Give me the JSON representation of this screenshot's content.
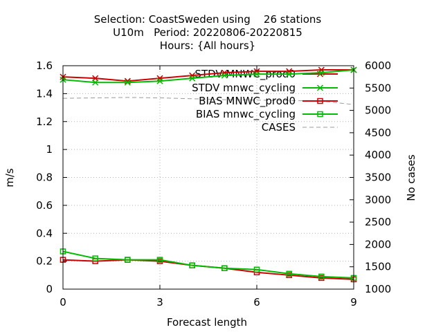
{
  "chart_data": {
    "type": "line",
    "title_lines": [
      "Selection: CoastSweden using    26 stations",
      "U10m   Period: 20220806-20220815",
      "Hours: {All hours}"
    ],
    "xlabel": "Forecast length",
    "ylabel": "m/s",
    "y2label": "No cases",
    "xlim": [
      0,
      9
    ],
    "ylim": [
      0,
      1.6
    ],
    "y2lim": [
      1000,
      6000
    ],
    "xticks": [
      0,
      3,
      6,
      9
    ],
    "yticks": [
      0,
      0.2,
      0.4,
      0.6,
      0.8,
      1,
      1.2,
      1.4,
      1.6
    ],
    "y2ticks": [
      1000,
      1500,
      2000,
      2500,
      3000,
      3500,
      4000,
      4500,
      5000,
      5500,
      6000
    ],
    "grid": true,
    "legend_position": "top-right",
    "x": [
      0,
      1,
      2,
      3,
      4,
      5,
      6,
      7,
      8,
      9
    ],
    "series": [
      {
        "name": "STDV MNWC_prod0",
        "color": "#cc0000",
        "marker": "x",
        "axis": "y1",
        "values": [
          1.52,
          1.51,
          1.49,
          1.51,
          1.53,
          1.55,
          1.56,
          1.56,
          1.57,
          1.57
        ]
      },
      {
        "name": "STDV mnwc_cycling",
        "color": "#00bb00",
        "marker": "x",
        "axis": "y1",
        "values": [
          1.5,
          1.48,
          1.48,
          1.49,
          1.51,
          1.53,
          1.54,
          1.54,
          1.55,
          1.57
        ]
      },
      {
        "name": "BIAS MNWC_prod0",
        "color": "#cc0000",
        "marker": "square",
        "axis": "y1",
        "values": [
          0.21,
          0.2,
          0.21,
          0.2,
          0.17,
          0.15,
          0.12,
          0.1,
          0.08,
          0.07
        ]
      },
      {
        "name": "BIAS mnwc_cycling",
        "color": "#00bb00",
        "marker": "square",
        "axis": "y1",
        "values": [
          0.27,
          0.22,
          0.21,
          0.21,
          0.17,
          0.15,
          0.14,
          0.11,
          0.09,
          0.08
        ]
      },
      {
        "name": "CASES",
        "color": "#999999",
        "marker": "none",
        "dashed": true,
        "axis": "y2",
        "values": [
          5270,
          5280,
          5290,
          5280,
          5260,
          5240,
          5230,
          5220,
          5210,
          5130
        ]
      }
    ]
  }
}
